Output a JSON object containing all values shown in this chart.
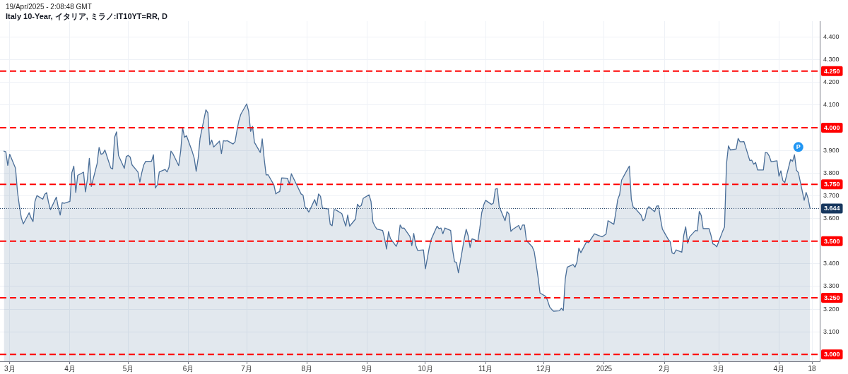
{
  "chart_data": {
    "type": "area",
    "title": "Italy 10-Year, イタリア, ミラノ:IT10YT=RR, D",
    "annotations": [
      "19/Apr/2025 - 2:08:48 GMT",
      {
        "text": "P",
        "x": "2025-04-11",
        "y": 3.915
      }
    ],
    "x": [
      "2024-02-27",
      "2024-02-28",
      "2024-02-29",
      "2024-03-01",
      "2024-03-04",
      "2024-03-05",
      "2024-03-06",
      "2024-03-07",
      "2024-03-08",
      "2024-03-11",
      "2024-03-12",
      "2024-03-13",
      "2024-03-14",
      "2024-03-15",
      "2024-03-18",
      "2024-03-19",
      "2024-03-20",
      "2024-03-21",
      "2024-03-22",
      "2024-03-25",
      "2024-03-26",
      "2024-03-27",
      "2024-03-28",
      "2024-03-29",
      "2024-04-01",
      "2024-04-02",
      "2024-04-03",
      "2024-04-04",
      "2024-04-05",
      "2024-04-08",
      "2024-04-09",
      "2024-04-10",
      "2024-04-11",
      "2024-04-12",
      "2024-04-15",
      "2024-04-16",
      "2024-04-17",
      "2024-04-18",
      "2024-04-19",
      "2024-04-22",
      "2024-04-23",
      "2024-04-24",
      "2024-04-25",
      "2024-04-26",
      "2024-04-29",
      "2024-04-30",
      "2024-05-01",
      "2024-05-02",
      "2024-05-03",
      "2024-05-06",
      "2024-05-07",
      "2024-05-08",
      "2024-05-09",
      "2024-05-10",
      "2024-05-13",
      "2024-05-14",
      "2024-05-15",
      "2024-05-16",
      "2024-05-17",
      "2024-05-20",
      "2024-05-21",
      "2024-05-22",
      "2024-05-23",
      "2024-05-24",
      "2024-05-27",
      "2024-05-28",
      "2024-05-29",
      "2024-05-30",
      "2024-05-31",
      "2024-06-03",
      "2024-06-04",
      "2024-06-05",
      "2024-06-06",
      "2024-06-07",
      "2024-06-10",
      "2024-06-11",
      "2024-06-12",
      "2024-06-13",
      "2024-06-14",
      "2024-06-17",
      "2024-06-18",
      "2024-06-19",
      "2024-06-20",
      "2024-06-21",
      "2024-06-24",
      "2024-06-25",
      "2024-06-26",
      "2024-06-27",
      "2024-06-28",
      "2024-07-01",
      "2024-07-02",
      "2024-07-03",
      "2024-07-04",
      "2024-07-05",
      "2024-07-08",
      "2024-07-09",
      "2024-07-10",
      "2024-07-11",
      "2024-07-12",
      "2024-07-15",
      "2024-07-16",
      "2024-07-17",
      "2024-07-18",
      "2024-07-19",
      "2024-07-22",
      "2024-07-23",
      "2024-07-24",
      "2024-07-25",
      "2024-07-26",
      "2024-07-29",
      "2024-07-30",
      "2024-07-31",
      "2024-08-01",
      "2024-08-02",
      "2024-08-05",
      "2024-08-06",
      "2024-08-07",
      "2024-08-08",
      "2024-08-09",
      "2024-08-12",
      "2024-08-13",
      "2024-08-14",
      "2024-08-15",
      "2024-08-16",
      "2024-08-19",
      "2024-08-20",
      "2024-08-21",
      "2024-08-22",
      "2024-08-23",
      "2024-08-26",
      "2024-08-27",
      "2024-08-28",
      "2024-08-29",
      "2024-08-30",
      "2024-09-02",
      "2024-09-03",
      "2024-09-04",
      "2024-09-05",
      "2024-09-06",
      "2024-09-09",
      "2024-09-10",
      "2024-09-11",
      "2024-09-12",
      "2024-09-13",
      "2024-09-16",
      "2024-09-17",
      "2024-09-18",
      "2024-09-19",
      "2024-09-20",
      "2024-09-23",
      "2024-09-24",
      "2024-09-25",
      "2024-09-26",
      "2024-09-27",
      "2024-09-30",
      "2024-10-01",
      "2024-10-02",
      "2024-10-03",
      "2024-10-04",
      "2024-10-07",
      "2024-10-08",
      "2024-10-09",
      "2024-10-10",
      "2024-10-11",
      "2024-10-14",
      "2024-10-15",
      "2024-10-16",
      "2024-10-17",
      "2024-10-18",
      "2024-10-21",
      "2024-10-22",
      "2024-10-23",
      "2024-10-24",
      "2024-10-25",
      "2024-10-28",
      "2024-10-29",
      "2024-10-30",
      "2024-10-31",
      "2024-11-01",
      "2024-11-04",
      "2024-11-05",
      "2024-11-06",
      "2024-11-07",
      "2024-11-08",
      "2024-11-11",
      "2024-11-12",
      "2024-11-13",
      "2024-11-14",
      "2024-11-15",
      "2024-11-18",
      "2024-11-19",
      "2024-11-20",
      "2024-11-21",
      "2024-11-22",
      "2024-11-25",
      "2024-11-26",
      "2024-11-27",
      "2024-11-28",
      "2024-11-29",
      "2024-12-02",
      "2024-12-03",
      "2024-12-04",
      "2024-12-05",
      "2024-12-06",
      "2024-12-09",
      "2024-12-10",
      "2024-12-11",
      "2024-12-12",
      "2024-12-13",
      "2024-12-16",
      "2024-12-17",
      "2024-12-18",
      "2024-12-19",
      "2024-12-20",
      "2024-12-23",
      "2024-12-24",
      "2024-12-27",
      "2024-12-30",
      "2024-12-31",
      "2025-01-02",
      "2025-01-03",
      "2025-01-06",
      "2025-01-07",
      "2025-01-08",
      "2025-01-09",
      "2025-01-10",
      "2025-01-13",
      "2025-01-14",
      "2025-01-15",
      "2025-01-16",
      "2025-01-17",
      "2025-01-20",
      "2025-01-21",
      "2025-01-22",
      "2025-01-23",
      "2025-01-24",
      "2025-01-27",
      "2025-01-28",
      "2025-01-29",
      "2025-01-30",
      "2025-01-31",
      "2025-02-03",
      "2025-02-04",
      "2025-02-05",
      "2025-02-06",
      "2025-02-07",
      "2025-02-10",
      "2025-02-11",
      "2025-02-12",
      "2025-02-13",
      "2025-02-14",
      "2025-02-17",
      "2025-02-18",
      "2025-02-19",
      "2025-02-20",
      "2025-02-21",
      "2025-02-24",
      "2025-02-25",
      "2025-02-26",
      "2025-02-27",
      "2025-02-28",
      "2025-03-03",
      "2025-03-04",
      "2025-03-05",
      "2025-03-06",
      "2025-03-07",
      "2025-03-10",
      "2025-03-11",
      "2025-03-12",
      "2025-03-13",
      "2025-03-14",
      "2025-03-17",
      "2025-03-18",
      "2025-03-19",
      "2025-03-20",
      "2025-03-21",
      "2025-03-24",
      "2025-03-25",
      "2025-03-26",
      "2025-03-27",
      "2025-03-28",
      "2025-03-31",
      "2025-04-01",
      "2025-04-02",
      "2025-04-03",
      "2025-04-04",
      "2025-04-07",
      "2025-04-08",
      "2025-04-09",
      "2025-04-10",
      "2025-04-11",
      "2025-04-14",
      "2025-04-15",
      "2025-04-16",
      "2025-04-17"
    ],
    "series": [
      {
        "color": "#4a6e98",
        "values": [
          3.897,
          3.894,
          3.834,
          3.883,
          3.821,
          3.717,
          3.654,
          3.602,
          3.576,
          3.625,
          3.602,
          3.586,
          3.675,
          3.701,
          3.685,
          3.706,
          3.714,
          3.67,
          3.639,
          3.694,
          3.649,
          3.615,
          3.67,
          3.667,
          3.675,
          3.802,
          3.831,
          3.715,
          3.79,
          3.804,
          3.717,
          3.774,
          3.865,
          3.741,
          3.842,
          3.913,
          3.883,
          3.886,
          3.902,
          3.823,
          3.818,
          3.958,
          3.982,
          3.878,
          3.821,
          3.873,
          3.878,
          3.871,
          3.836,
          3.805,
          3.76,
          3.802,
          3.836,
          3.852,
          3.852,
          3.881,
          3.734,
          3.748,
          3.805,
          3.816,
          3.805,
          3.826,
          3.897,
          3.886,
          3.833,
          3.896,
          4.0,
          3.958,
          3.965,
          3.894,
          3.865,
          3.808,
          3.865,
          3.954,
          4.079,
          4.066,
          3.925,
          3.946,
          3.915,
          3.941,
          3.886,
          3.943,
          3.941,
          3.943,
          3.928,
          3.938,
          3.988,
          4.032,
          4.06,
          4.105,
          4.073,
          3.984,
          4.006,
          3.935,
          3.891,
          3.951,
          3.863,
          3.792,
          3.793,
          3.748,
          3.708,
          3.715,
          3.719,
          3.779,
          3.777,
          3.751,
          3.797,
          3.779,
          3.761,
          3.708,
          3.703,
          3.652,
          3.642,
          3.628,
          3.683,
          3.656,
          3.708,
          3.698,
          3.646,
          3.642,
          3.574,
          3.568,
          3.639,
          3.637,
          3.621,
          3.592,
          3.566,
          3.615,
          3.566,
          3.597,
          3.663,
          3.652,
          3.657,
          3.689,
          3.704,
          3.675,
          3.584,
          3.566,
          3.553,
          3.547,
          3.511,
          3.465,
          3.542,
          3.511,
          3.477,
          3.5,
          3.571,
          3.557,
          3.558,
          3.521,
          3.48,
          3.534,
          3.482,
          3.459,
          3.461,
          3.378,
          3.425,
          3.472,
          3.508,
          3.566,
          3.555,
          3.558,
          3.532,
          3.558,
          3.547,
          3.461,
          3.409,
          3.406,
          3.36,
          3.51,
          3.552,
          3.524,
          3.472,
          3.51,
          3.5,
          3.557,
          3.625,
          3.659,
          3.68,
          3.662,
          3.667,
          3.729,
          3.732,
          3.652,
          3.59,
          3.63,
          3.62,
          3.543,
          3.552,
          3.569,
          3.55,
          3.571,
          3.571,
          3.503,
          3.475,
          3.454,
          3.399,
          3.34,
          3.271,
          3.256,
          3.235,
          3.209,
          3.199,
          3.191,
          3.193,
          3.204,
          3.194,
          3.333,
          3.385,
          3.397,
          3.385,
          3.407,
          3.469,
          3.449,
          3.498,
          3.493,
          3.532,
          3.522,
          3.519,
          3.531,
          3.59,
          3.574,
          3.625,
          3.683,
          3.706,
          3.769,
          3.816,
          3.831,
          3.685,
          3.649,
          3.644,
          3.615,
          3.59,
          3.599,
          3.639,
          3.652,
          3.63,
          3.654,
          3.656,
          3.6,
          3.553,
          3.508,
          3.498,
          3.448,
          3.444,
          3.461,
          3.451,
          3.526,
          3.563,
          3.491,
          3.519,
          3.547,
          3.545,
          3.631,
          3.613,
          3.555,
          3.555,
          3.526,
          3.488,
          3.484,
          3.475,
          3.543,
          3.563,
          3.84,
          3.92,
          3.902,
          3.906,
          3.953,
          3.938,
          3.938,
          3.939,
          3.855,
          3.857,
          3.839,
          3.847,
          3.814,
          3.814,
          3.891,
          3.889,
          3.875,
          3.85,
          3.854,
          3.786,
          3.81,
          3.767,
          3.758,
          3.86,
          3.852,
          3.881,
          3.813,
          3.802,
          3.68,
          3.715,
          3.689,
          3.644
        ]
      }
    ],
    "xlim": [
      "2024-02-25",
      "2025-04-22"
    ],
    "xticks": [
      {
        "value": "2024-03-01",
        "label": "3月"
      },
      {
        "value": "2024-04-01",
        "label": "4月"
      },
      {
        "value": "2024-05-01",
        "label": "5月"
      },
      {
        "value": "2024-06-01",
        "label": "6月"
      },
      {
        "value": "2024-07-01",
        "label": "7月"
      },
      {
        "value": "2024-08-01",
        "label": "8月"
      },
      {
        "value": "2024-09-01",
        "label": "9月"
      },
      {
        "value": "2024-10-01",
        "label": "10月"
      },
      {
        "value": "2024-11-01",
        "label": "11月"
      },
      {
        "value": "2024-12-01",
        "label": "12月"
      },
      {
        "value": "2025-01-01",
        "label": "2025"
      },
      {
        "value": "2025-02-01",
        "label": "2月"
      },
      {
        "value": "2025-03-01",
        "label": "3月"
      },
      {
        "value": "2025-04-01",
        "label": "4月"
      },
      {
        "value": "2025-04-18",
        "label": "18"
      }
    ],
    "ylim": [
      2.97,
      4.47
    ],
    "yticks": [
      {
        "value": 3.1,
        "label": "3.100"
      },
      {
        "value": 3.2,
        "label": "3.200"
      },
      {
        "value": 3.3,
        "label": "3.300"
      },
      {
        "value": 3.4,
        "label": "3.400"
      },
      {
        "value": 3.6,
        "label": "3.600"
      },
      {
        "value": 3.7,
        "label": "3.700"
      },
      {
        "value": 3.8,
        "label": "3.800"
      },
      {
        "value": 3.9,
        "label": "3.900"
      },
      {
        "value": 4.1,
        "label": "4.100"
      },
      {
        "value": 4.2,
        "label": "4.200"
      },
      {
        "value": 4.3,
        "label": "4.300"
      },
      {
        "value": 4.4,
        "label": "4.400"
      }
    ],
    "ref_lines": [
      {
        "axis": "y",
        "value": 4.25,
        "label": "4.250",
        "color": "#ff0000",
        "line_style": "dashed"
      },
      {
        "axis": "y",
        "value": 4,
        "label": "4.000",
        "color": "#ff0000",
        "line_style": "dashed"
      },
      {
        "axis": "y",
        "value": 3.75,
        "label": "3.750",
        "color": "#ff0000",
        "line_style": "dashed"
      },
      {
        "axis": "y",
        "value": 3.5,
        "label": "3.500",
        "color": "#ff0000",
        "line_style": "dashed"
      },
      {
        "axis": "y",
        "value": 3.25,
        "label": "3.250",
        "color": "#ff0000",
        "line_style": "dashed"
      },
      {
        "axis": "y",
        "value": 3,
        "label": "3.000",
        "color": "#ff0000",
        "line_style": "dashed"
      },
      {
        "axis": "y",
        "value": 3.644,
        "label": "3.644",
        "color": "#17375e",
        "line_style": "dotted"
      }
    ],
    "grid": true
  }
}
